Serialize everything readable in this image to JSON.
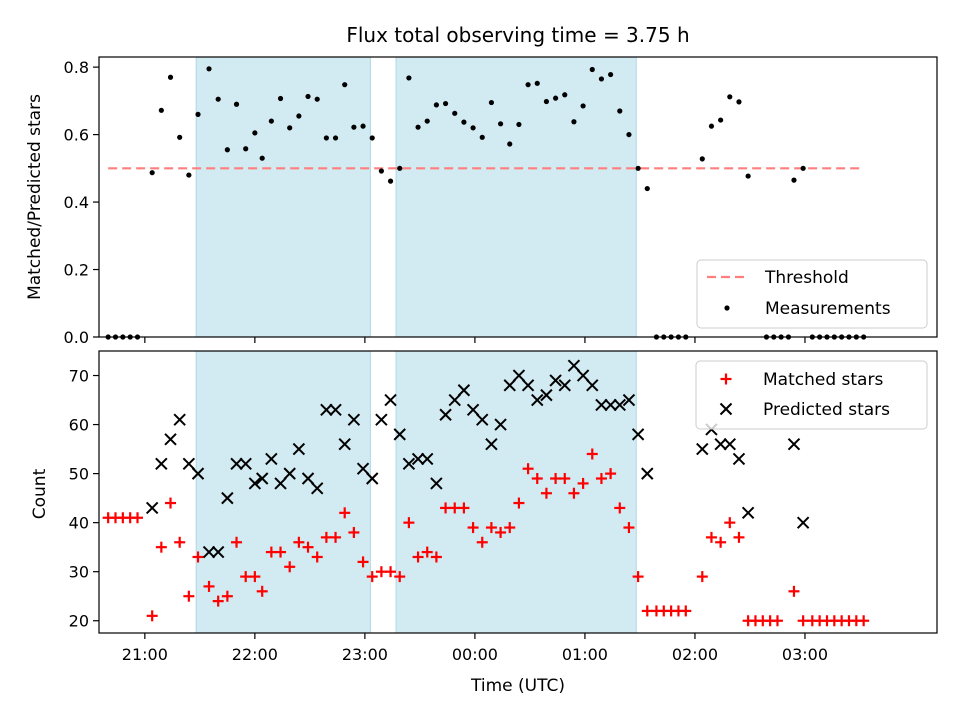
{
  "title": "Flux total observing time = 3.75 h",
  "colors": {
    "band": "#add8e6",
    "threshold": "#ff7f7f",
    "measurement": "#000000",
    "matched": "#ff0000",
    "predicted": "#000000"
  },
  "chart_data": [
    {
      "type": "scatter",
      "panel": "top",
      "ylabel": "Matched/Predicted stars",
      "ylim": [
        0,
        0.83
      ],
      "yticks": [
        "0.0",
        "0.2",
        "0.4",
        "0.6",
        "0.8"
      ],
      "xlim": [
        "20:35",
        "04:12"
      ],
      "xticks": [
        "21:00",
        "22:00",
        "23:00",
        "00:00",
        "01:00",
        "02:00",
        "03:00"
      ],
      "shaded_intervals": [
        [
          "21:28",
          "23:03"
        ],
        [
          "23:17",
          "01:28"
        ]
      ],
      "threshold": 0.5,
      "legend": {
        "position": "lower-right",
        "entries": [
          "Threshold",
          "Measurements"
        ]
      },
      "series": [
        {
          "name": "Measurements",
          "points": [
            [
              "20:40",
              0
            ],
            [
              "20:44",
              0
            ],
            [
              "20:48",
              0
            ],
            [
              "20:52",
              0
            ],
            [
              "20:56",
              0
            ],
            [
              "21:04",
              0.487
            ],
            [
              "21:09",
              0.672
            ],
            [
              "21:14",
              0.77
            ],
            [
              "21:19",
              0.592
            ],
            [
              "21:24",
              0.48
            ],
            [
              "21:29",
              0.66
            ],
            [
              "21:35",
              0.795
            ],
            [
              "21:40",
              0.705
            ],
            [
              "21:45",
              0.555
            ],
            [
              "21:50",
              0.69
            ],
            [
              "21:55",
              0.558
            ],
            [
              "22:00",
              0.605
            ],
            [
              "22:04",
              0.53
            ],
            [
              "22:09",
              0.64
            ],
            [
              "22:14",
              0.707
            ],
            [
              "22:19",
              0.62
            ],
            [
              "22:24",
              0.655
            ],
            [
              "22:29",
              0.713
            ],
            [
              "22:34",
              0.705
            ],
            [
              "22:39",
              0.59
            ],
            [
              "22:44",
              0.59
            ],
            [
              "22:49",
              0.748
            ],
            [
              "22:54",
              0.622
            ],
            [
              "22:59",
              0.625
            ],
            [
              "23:04",
              0.59
            ],
            [
              "23:09",
              0.492
            ],
            [
              "23:14",
              0.462
            ],
            [
              "23:19",
              0.5
            ],
            [
              "23:24",
              0.768
            ],
            [
              "23:29",
              0.622
            ],
            [
              "23:34",
              0.64
            ],
            [
              "23:39",
              0.688
            ],
            [
              "23:44",
              0.692
            ],
            [
              "23:49",
              0.663
            ],
            [
              "23:54",
              0.637
            ],
            [
              "23:59",
              0.62
            ],
            [
              "00:04",
              0.592
            ],
            [
              "00:09",
              0.695
            ],
            [
              "00:14",
              0.632
            ],
            [
              "00:19",
              0.572
            ],
            [
              "00:24",
              0.63
            ],
            [
              "00:29",
              0.748
            ],
            [
              "00:34",
              0.752
            ],
            [
              "00:39",
              0.698
            ],
            [
              "00:44",
              0.708
            ],
            [
              "00:49",
              0.718
            ],
            [
              "00:54",
              0.638
            ],
            [
              "00:59",
              0.685
            ],
            [
              "01:04",
              0.793
            ],
            [
              "01:09",
              0.765
            ],
            [
              "01:14",
              0.778
            ],
            [
              "01:19",
              0.67
            ],
            [
              "01:24",
              0.6
            ],
            [
              "01:29",
              0.5
            ],
            [
              "01:34",
              0.44
            ],
            [
              "01:39",
              0
            ],
            [
              "01:43",
              0
            ],
            [
              "01:47",
              0
            ],
            [
              "01:51",
              0
            ],
            [
              "01:55",
              0
            ],
            [
              "02:04",
              0.528
            ],
            [
              "02:09",
              0.625
            ],
            [
              "02:14",
              0.643
            ],
            [
              "02:19",
              0.712
            ],
            [
              "02:24",
              0.697
            ],
            [
              "02:29",
              0.477
            ],
            [
              "02:39",
              0
            ],
            [
              "02:43",
              0
            ],
            [
              "02:47",
              0
            ],
            [
              "02:51",
              0
            ],
            [
              "02:54",
              0.465
            ],
            [
              "02:59",
              0.5
            ],
            [
              "03:04",
              0
            ],
            [
              "03:08",
              0
            ],
            [
              "03:12",
              0
            ],
            [
              "03:16",
              0
            ],
            [
              "03:20",
              0
            ],
            [
              "03:24",
              0
            ],
            [
              "03:28",
              0
            ],
            [
              "03:32",
              0
            ]
          ]
        }
      ]
    },
    {
      "type": "scatter",
      "panel": "bottom",
      "xlabel": "Time (UTC)",
      "ylabel": "Count",
      "ylim": [
        17.5,
        75
      ],
      "yticks": [
        "20",
        "30",
        "40",
        "50",
        "60",
        "70"
      ],
      "xlim": [
        "20:35",
        "04:12"
      ],
      "xticks": [
        "21:00",
        "22:00",
        "23:00",
        "00:00",
        "01:00",
        "02:00",
        "03:00"
      ],
      "shaded_intervals": [
        [
          "21:28",
          "23:03"
        ],
        [
          "23:17",
          "01:28"
        ]
      ],
      "legend": {
        "position": "top-right",
        "entries": [
          "Matched stars",
          "Predicted stars"
        ]
      },
      "series": [
        {
          "name": "Matched stars",
          "points": [
            [
              "20:40",
              41
            ],
            [
              "20:44",
              41
            ],
            [
              "20:48",
              41
            ],
            [
              "20:52",
              41
            ],
            [
              "20:56",
              41
            ],
            [
              "21:04",
              21
            ],
            [
              "21:09",
              35
            ],
            [
              "21:14",
              44
            ],
            [
              "21:19",
              36
            ],
            [
              "21:24",
              25
            ],
            [
              "21:29",
              33
            ],
            [
              "21:35",
              27
            ],
            [
              "21:40",
              24
            ],
            [
              "21:45",
              25
            ],
            [
              "21:50",
              36
            ],
            [
              "21:55",
              29
            ],
            [
              "22:00",
              29
            ],
            [
              "22:04",
              26
            ],
            [
              "22:09",
              34
            ],
            [
              "22:14",
              34
            ],
            [
              "22:19",
              31
            ],
            [
              "22:24",
              36
            ],
            [
              "22:29",
              35
            ],
            [
              "22:34",
              33
            ],
            [
              "22:39",
              37
            ],
            [
              "22:44",
              37
            ],
            [
              "22:49",
              42
            ],
            [
              "22:54",
              38
            ],
            [
              "22:59",
              32
            ],
            [
              "23:04",
              29
            ],
            [
              "23:09",
              30
            ],
            [
              "23:14",
              30
            ],
            [
              "23:19",
              29
            ],
            [
              "23:24",
              40
            ],
            [
              "23:29",
              33
            ],
            [
              "23:34",
              34
            ],
            [
              "23:39",
              33
            ],
            [
              "23:44",
              43
            ],
            [
              "23:49",
              43
            ],
            [
              "23:54",
              43
            ],
            [
              "23:59",
              39
            ],
            [
              "00:04",
              36
            ],
            [
              "00:09",
              39
            ],
            [
              "00:14",
              38
            ],
            [
              "00:19",
              39
            ],
            [
              "00:24",
              44
            ],
            [
              "00:29",
              51
            ],
            [
              "00:34",
              49
            ],
            [
              "00:39",
              46
            ],
            [
              "00:44",
              49
            ],
            [
              "00:49",
              49
            ],
            [
              "00:54",
              46
            ],
            [
              "00:59",
              48
            ],
            [
              "01:04",
              54
            ],
            [
              "01:09",
              49
            ],
            [
              "01:14",
              50
            ],
            [
              "01:19",
              43
            ],
            [
              "01:24",
              39
            ],
            [
              "01:29",
              29
            ],
            [
              "01:34",
              22
            ],
            [
              "01:39",
              22
            ],
            [
              "01:43",
              22
            ],
            [
              "01:47",
              22
            ],
            [
              "01:51",
              22
            ],
            [
              "01:55",
              22
            ],
            [
              "02:04",
              29
            ],
            [
              "02:09",
              37
            ],
            [
              "02:14",
              36
            ],
            [
              "02:19",
              40
            ],
            [
              "02:24",
              37
            ],
            [
              "02:29",
              20
            ],
            [
              "02:33",
              20
            ],
            [
              "02:37",
              20
            ],
            [
              "02:41",
              20
            ],
            [
              "02:45",
              20
            ],
            [
              "02:54",
              26
            ],
            [
              "02:59",
              20
            ],
            [
              "03:04",
              20
            ],
            [
              "03:08",
              20
            ],
            [
              "03:12",
              20
            ],
            [
              "03:16",
              20
            ],
            [
              "03:20",
              20
            ],
            [
              "03:24",
              20
            ],
            [
              "03:28",
              20
            ],
            [
              "03:32",
              20
            ]
          ]
        },
        {
          "name": "Predicted stars",
          "points": [
            [
              "21:04",
              43
            ],
            [
              "21:09",
              52
            ],
            [
              "21:14",
              57
            ],
            [
              "21:19",
              61
            ],
            [
              "21:24",
              52
            ],
            [
              "21:29",
              50
            ],
            [
              "21:35",
              34
            ],
            [
              "21:40",
              34
            ],
            [
              "21:45",
              45
            ],
            [
              "21:50",
              52
            ],
            [
              "21:55",
              52
            ],
            [
              "22:00",
              48
            ],
            [
              "22:04",
              49
            ],
            [
              "22:09",
              53
            ],
            [
              "22:14",
              48
            ],
            [
              "22:19",
              50
            ],
            [
              "22:24",
              55
            ],
            [
              "22:29",
              49
            ],
            [
              "22:34",
              47
            ],
            [
              "22:39",
              63
            ],
            [
              "22:44",
              63
            ],
            [
              "22:49",
              56
            ],
            [
              "22:54",
              61
            ],
            [
              "22:59",
              51
            ],
            [
              "23:04",
              49
            ],
            [
              "23:09",
              61
            ],
            [
              "23:14",
              65
            ],
            [
              "23:19",
              58
            ],
            [
              "23:24",
              52
            ],
            [
              "23:29",
              53
            ],
            [
              "23:34",
              53
            ],
            [
              "23:39",
              48
            ],
            [
              "23:44",
              62
            ],
            [
              "23:49",
              65
            ],
            [
              "23:54",
              67
            ],
            [
              "23:59",
              63
            ],
            [
              "00:04",
              61
            ],
            [
              "00:09",
              56
            ],
            [
              "00:14",
              60
            ],
            [
              "00:19",
              68
            ],
            [
              "00:24",
              70
            ],
            [
              "00:29",
              68
            ],
            [
              "00:34",
              65
            ],
            [
              "00:39",
              66
            ],
            [
              "00:44",
              69
            ],
            [
              "00:49",
              68
            ],
            [
              "00:54",
              72
            ],
            [
              "00:59",
              70
            ],
            [
              "01:04",
              68
            ],
            [
              "01:09",
              64
            ],
            [
              "01:14",
              64
            ],
            [
              "01:19",
              64
            ],
            [
              "01:24",
              65
            ],
            [
              "01:29",
              58
            ],
            [
              "01:34",
              50
            ],
            [
              "02:04",
              55
            ],
            [
              "02:09",
              59
            ],
            [
              "02:14",
              56
            ],
            [
              "02:19",
              56
            ],
            [
              "02:24",
              53
            ],
            [
              "02:29",
              42
            ],
            [
              "02:54",
              56
            ],
            [
              "02:59",
              40
            ]
          ]
        }
      ]
    }
  ]
}
